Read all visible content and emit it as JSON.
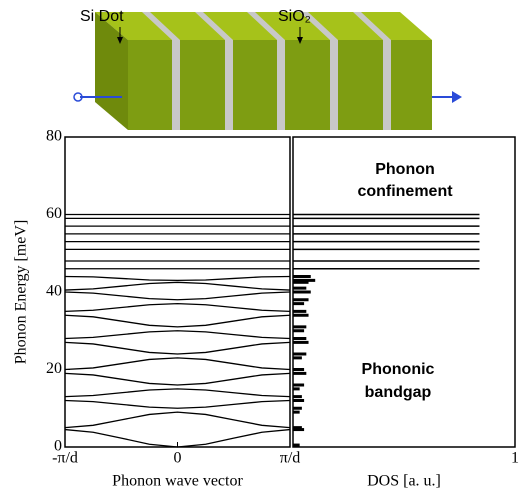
{
  "diagram": {
    "dot_label": "Si Dot",
    "oxide_label": "SiO₂"
  },
  "chart_data": [
    {
      "type": "line",
      "ylabel": "Phonon Energy [meV]",
      "xlabel": "Phonon wave vector",
      "color": "#000000",
      "x": [
        -1,
        -0.75,
        -0.5,
        -0.25,
        0,
        0.25,
        0.5,
        0.75,
        1
      ],
      "xlim": [
        -1,
        1
      ],
      "xticks": [
        {
          "value": -1,
          "label": "-π/d"
        },
        0,
        {
          "value": 1,
          "label": "π/d"
        }
      ],
      "ylim": [
        0,
        80
      ],
      "yticks": [
        0,
        20,
        40,
        60,
        80
      ],
      "series": [
        {
          "values": [
            4.5,
            3.8,
            2.3,
            0.7,
            0,
            0.7,
            2.3,
            3.8,
            4.5
          ]
        },
        {
          "values": [
            5,
            5.6,
            7,
            8.4,
            9,
            8.4,
            7,
            5.6,
            5
          ]
        },
        {
          "values": [
            12,
            11.7,
            11,
            10.3,
            10,
            10.3,
            11,
            11.7,
            12
          ]
        },
        {
          "values": [
            13,
            13.3,
            14,
            14.7,
            15,
            14.7,
            14,
            13.3,
            13
          ]
        },
        {
          "values": [
            19,
            18.6,
            17.5,
            16.4,
            16,
            16.4,
            17.5,
            18.6,
            19
          ]
        },
        {
          "values": [
            20,
            20.4,
            21.5,
            22.6,
            23,
            22.6,
            21.5,
            20.4,
            20
          ]
        },
        {
          "values": [
            27,
            26.6,
            25.5,
            24.4,
            24,
            24.4,
            25.5,
            26.6,
            27
          ]
        },
        {
          "values": [
            28,
            28.3,
            29,
            29.7,
            30,
            29.7,
            29,
            28.3,
            28
          ]
        },
        {
          "values": [
            34,
            33.6,
            32.5,
            31.4,
            31,
            31.4,
            32.5,
            33.6,
            34
          ]
        },
        {
          "values": [
            35,
            35.3,
            36,
            36.7,
            37,
            36.7,
            36,
            35.3,
            35
          ]
        },
        {
          "values": [
            40,
            39.7,
            39,
            38.3,
            38,
            38.3,
            39,
            39.7,
            40
          ]
        },
        {
          "values": [
            40.5,
            40.8,
            41.5,
            42.2,
            42.5,
            42.2,
            41.5,
            40.8,
            40.5
          ]
        },
        {
          "values": [
            44,
            43.9,
            43.5,
            43.1,
            43,
            43.1,
            43.5,
            43.9,
            44
          ]
        },
        {
          "values": [
            46,
            46,
            46,
            46,
            46,
            46,
            46,
            46,
            46
          ]
        },
        {
          "values": [
            48,
            48,
            48,
            48,
            48,
            48,
            48,
            48,
            48
          ]
        },
        {
          "values": [
            51,
            51,
            51,
            51,
            51,
            51,
            51,
            51,
            51
          ]
        },
        {
          "values": [
            53,
            53,
            53,
            53,
            53,
            53,
            53,
            53,
            53
          ]
        },
        {
          "values": [
            55,
            55,
            55,
            55,
            55,
            55,
            55,
            55,
            55
          ]
        },
        {
          "values": [
            57,
            57,
            57,
            57,
            57,
            57,
            57,
            57,
            57
          ]
        },
        {
          "values": [
            59,
            59,
            59,
            59,
            59,
            59,
            59,
            59,
            59
          ]
        },
        {
          "values": [
            60,
            60,
            60,
            60,
            60,
            60,
            60,
            60,
            60
          ]
        }
      ]
    },
    {
      "type": "hbar",
      "xlabel": "DOS [a. u.]",
      "color": "#000000",
      "xlim": [
        0,
        1
      ],
      "xticks": [
        1
      ],
      "ylim": [
        0,
        80
      ],
      "y": [
        0.5,
        4.5,
        5,
        9,
        10,
        12,
        13,
        15,
        16,
        19,
        20,
        23,
        24,
        27,
        28,
        30,
        31,
        34,
        35,
        37,
        38,
        40,
        41,
        42.5,
        43,
        44,
        46,
        48,
        51,
        53,
        55,
        57,
        59,
        60
      ],
      "values": [
        0.03,
        0.05,
        0.04,
        0.03,
        0.04,
        0.05,
        0.04,
        0.03,
        0.05,
        0.06,
        0.05,
        0.04,
        0.06,
        0.07,
        0.06,
        0.05,
        0.06,
        0.07,
        0.06,
        0.05,
        0.07,
        0.08,
        0.06,
        0.07,
        0.1,
        0.08,
        0.84,
        0.84,
        0.84,
        0.84,
        0.84,
        0.84,
        0.84,
        0.84
      ],
      "annotations": [
        {
          "text": "Phonon",
          "color": "#3a3ad8"
        },
        {
          "text": "confinement",
          "color": "#3a3ad8"
        },
        {
          "text": "Phononic",
          "color": "#e0186a"
        },
        {
          "text": "bandgap",
          "color": "#e0186a"
        }
      ]
    }
  ]
}
